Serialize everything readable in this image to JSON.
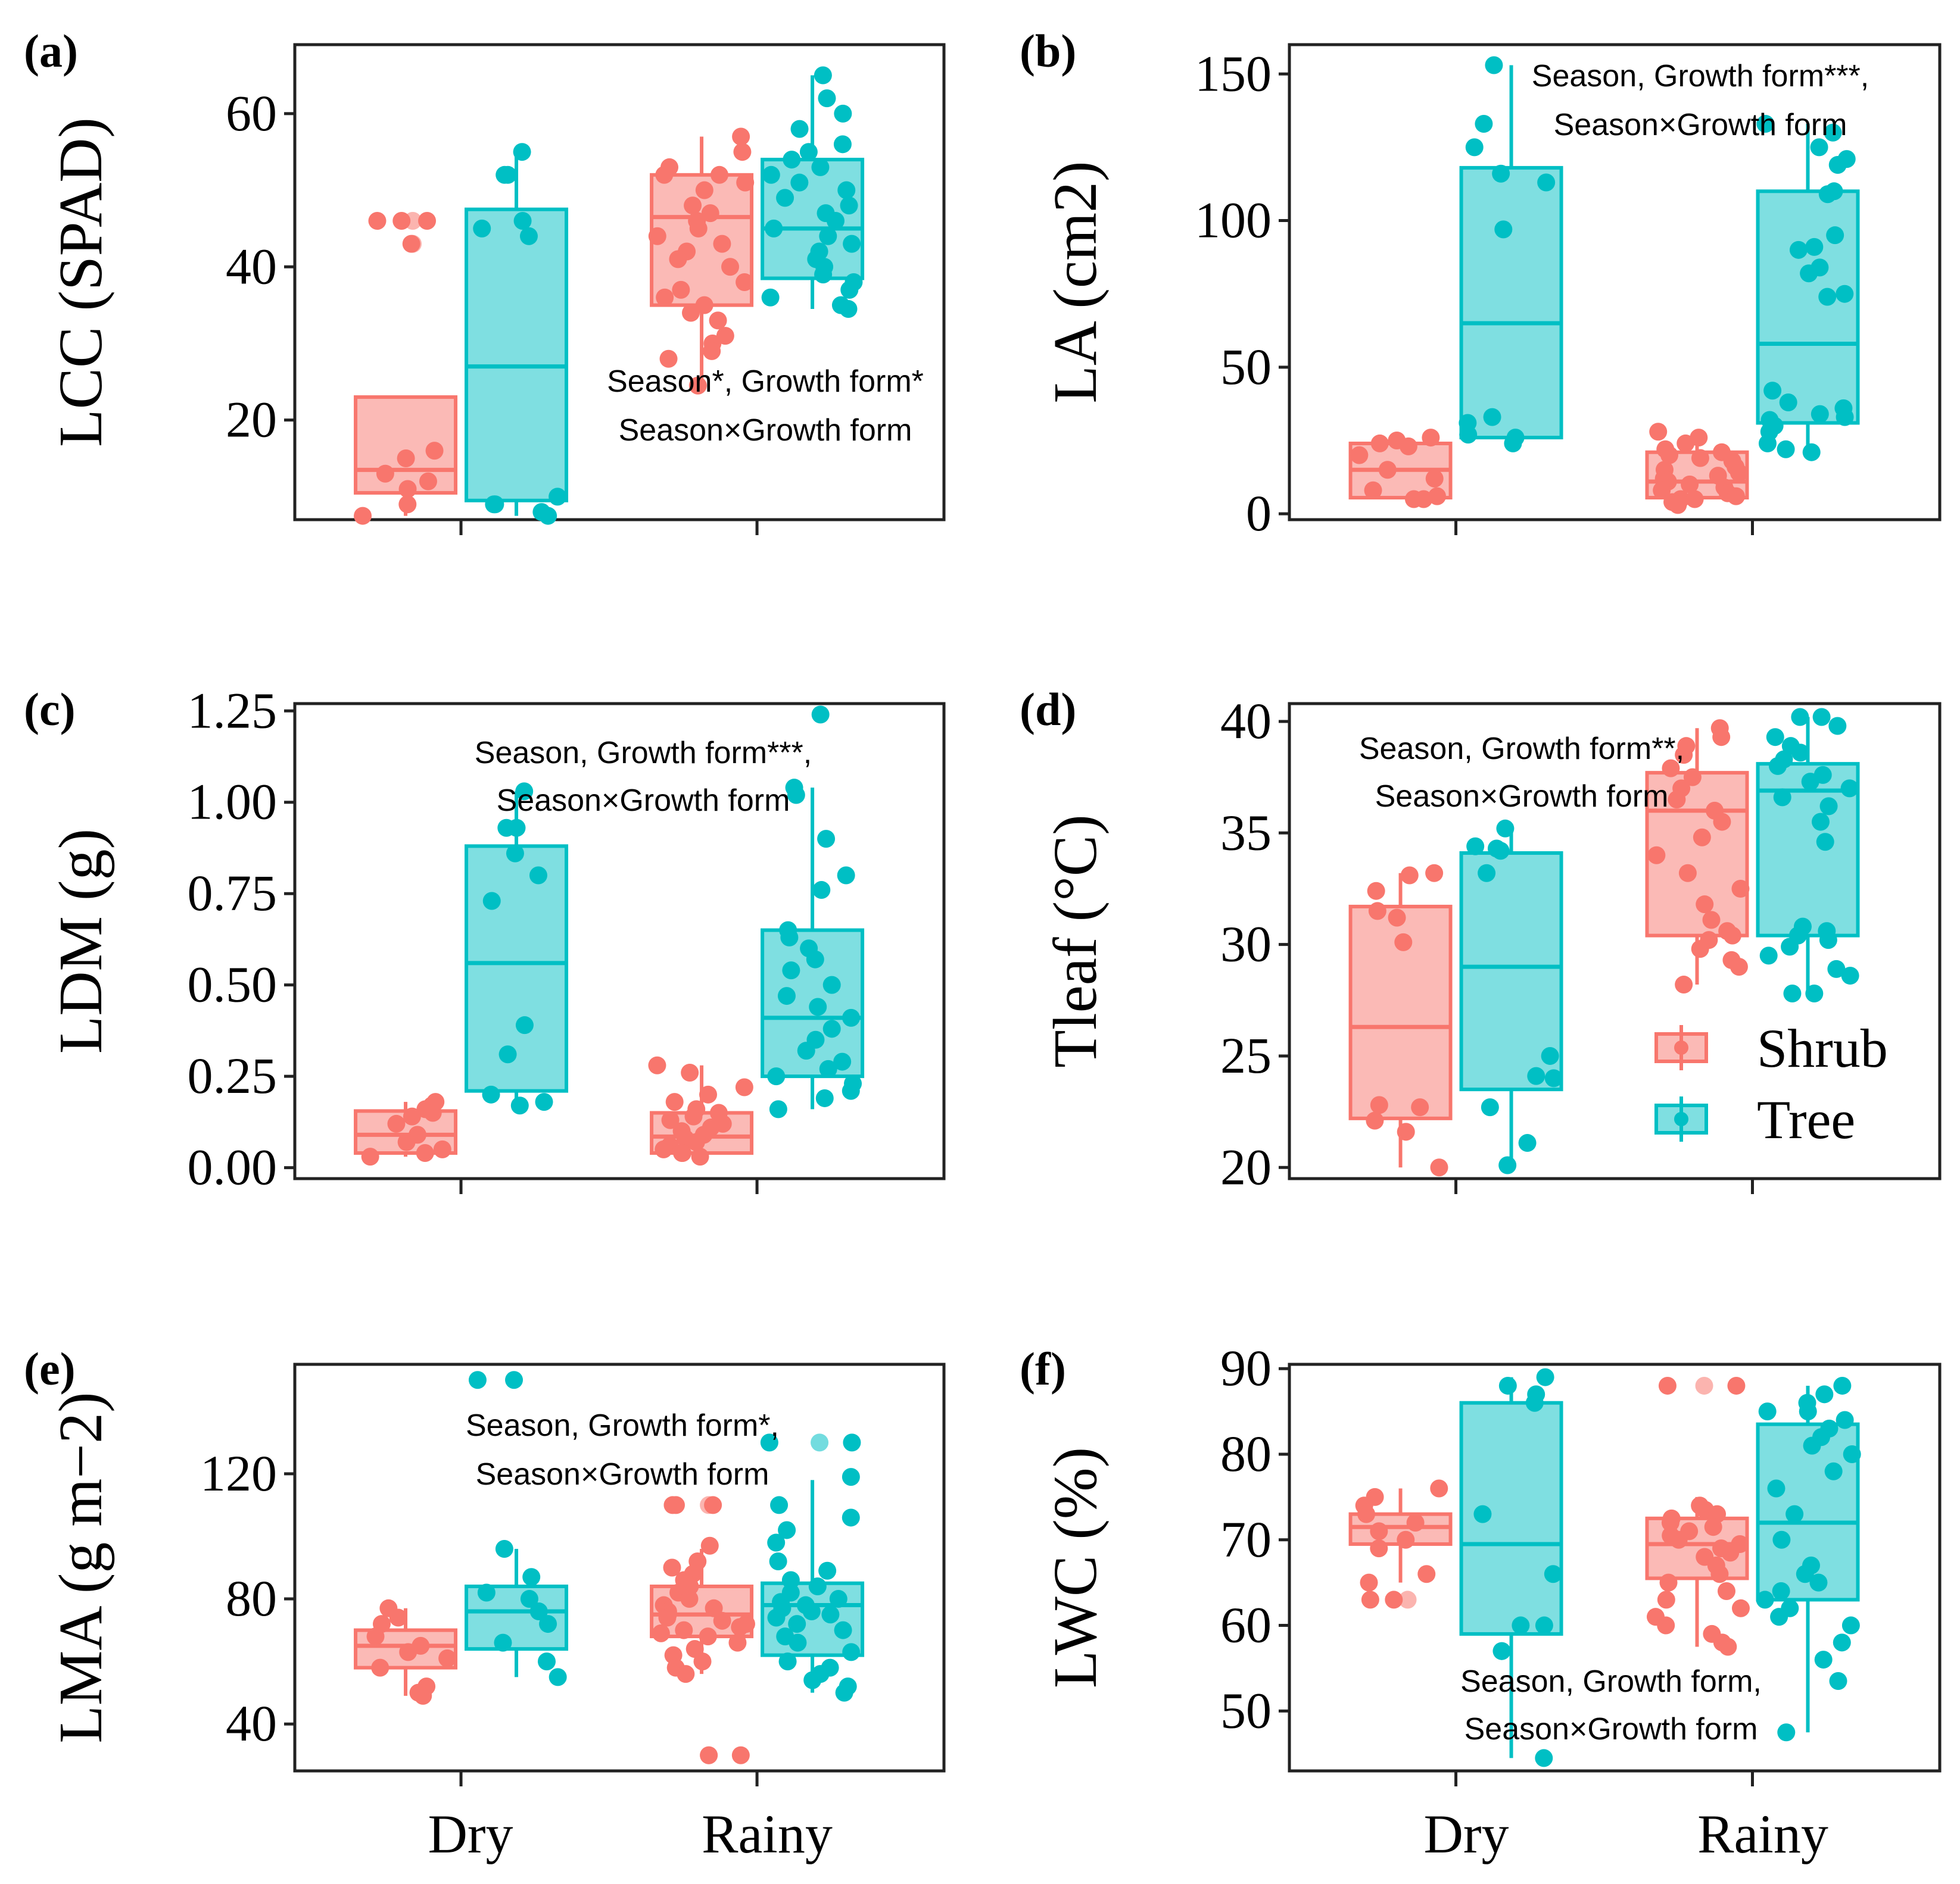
{
  "colors": {
    "shrub": "#F8766D",
    "tree": "#00BFC4"
  },
  "legend": {
    "title": "",
    "items": [
      {
        "name": "Shrub",
        "color": "#F8766D"
      },
      {
        "name": "Tree",
        "color": "#00BFC4"
      }
    ],
    "placement": "bottom-right of panel (d)"
  },
  "chart_data": [
    {
      "panel": "(a)",
      "type": "box",
      "ylabel": "LCC (SPAD)",
      "ylim": [
        7,
        69
      ],
      "yticks": [
        20,
        40,
        60
      ],
      "categories": [
        "Dry",
        "Rainy"
      ],
      "annotation": [
        "Season*, Growth form*",
        "Season×Growth form"
      ],
      "boxes": [
        {
          "group": "Shrub",
          "x": "Dry",
          "lower": 7.5,
          "q1": 10.5,
          "median": 13.5,
          "q3": 23,
          "upper": 23,
          "outliers": [
            43,
            46
          ]
        },
        {
          "group": "Tree",
          "x": "Dry",
          "lower": 7.5,
          "q1": 9.5,
          "median": 27,
          "q3": 47.5,
          "upper": 55
        },
        {
          "group": "Shrub",
          "x": "Rainy",
          "lower": 24.5,
          "q1": 35,
          "median": 46.5,
          "q3": 52,
          "upper": 57
        },
        {
          "group": "Tree",
          "x": "Rainy",
          "lower": 34.5,
          "q1": 38.5,
          "median": 45,
          "q3": 54,
          "upper": 65
        }
      ],
      "points": {
        "Shrub-Dry": [
          46,
          46,
          43,
          46,
          13,
          16,
          12,
          15,
          11,
          9,
          7.5
        ],
        "Tree-Dry": [
          55,
          52,
          52,
          46,
          45,
          44,
          10,
          9,
          9,
          8,
          7.5
        ],
        "Shrub-Rainy": [
          57,
          55,
          53,
          52,
          52,
          51,
          50,
          48,
          47,
          46,
          45,
          44,
          43,
          42,
          41,
          40,
          38,
          37,
          36,
          35,
          34,
          33,
          31,
          30,
          29,
          28,
          24.5
        ],
        "Tree-Rainy": [
          65,
          62,
          60,
          58,
          56,
          55,
          54,
          53,
          52,
          51,
          50,
          49,
          48,
          47,
          46,
          45,
          44,
          43,
          42,
          41,
          40,
          39,
          38,
          37,
          36,
          35,
          34.5
        ]
      }
    },
    {
      "panel": "(b)",
      "type": "box",
      "ylabel": "LA (cm2)",
      "ylim": [
        -2,
        160
      ],
      "yticks": [
        0,
        50,
        100,
        150
      ],
      "categories": [
        "Dry",
        "Rainy"
      ],
      "annotation": [
        "Season, Growth form***,",
        "Season×Growth form"
      ],
      "boxes": [
        {
          "group": "Shrub",
          "x": "Dry",
          "lower": 5,
          "q1": 5.5,
          "median": 15,
          "q3": 24,
          "upper": 26
        },
        {
          "group": "Tree",
          "x": "Dry",
          "lower": 24,
          "q1": 26,
          "median": 65,
          "q3": 118,
          "upper": 153
        },
        {
          "group": "Shrub",
          "x": "Rainy",
          "lower": 3,
          "q1": 5.5,
          "median": 11,
          "q3": 21,
          "upper": 28
        },
        {
          "group": "Tree",
          "x": "Rainy",
          "lower": 20,
          "q1": 31,
          "median": 58,
          "q3": 110,
          "upper": 133
        }
      ],
      "points": {
        "Shrub-Dry": [
          26,
          25,
          24,
          23,
          20,
          15,
          12,
          8,
          6,
          5,
          5
        ],
        "Tree-Dry": [
          153,
          133,
          125,
          116,
          113,
          97,
          33,
          31,
          27,
          26,
          24
        ],
        "Shrub-Rainy": [
          28,
          26,
          24,
          22,
          21,
          20,
          19,
          18,
          16,
          15,
          14,
          13,
          12,
          11,
          10,
          9,
          8,
          7,
          6,
          5,
          5,
          4,
          3
        ],
        "Tree-Rainy": [
          133,
          130,
          125,
          121,
          119,
          110,
          109,
          95,
          91,
          90,
          84,
          82,
          75,
          74,
          42,
          38,
          36,
          34,
          33,
          32,
          30,
          28,
          24,
          22,
          21
        ]
      }
    },
    {
      "panel": "(c)",
      "type": "box",
      "ylabel": "LDM (g)",
      "ylim": [
        -0.03,
        1.27
      ],
      "yticks": [
        0.0,
        0.25,
        0.5,
        0.75,
        1.0,
        1.25
      ],
      "ytick_labels": [
        "0.00",
        "0.25",
        "0.50",
        "0.75",
        "1.00",
        "1.25"
      ],
      "categories": [
        "Dry",
        "Rainy"
      ],
      "annotation": [
        "Season, Growth form***,",
        "Season×Growth form"
      ],
      "boxes": [
        {
          "group": "Shrub",
          "x": "Dry",
          "lower": 0.03,
          "q1": 0.04,
          "median": 0.09,
          "q3": 0.155,
          "upper": 0.18
        },
        {
          "group": "Tree",
          "x": "Dry",
          "lower": 0.17,
          "q1": 0.21,
          "median": 0.56,
          "q3": 0.88,
          "upper": 1.03
        },
        {
          "group": "Shrub",
          "x": "Rainy",
          "lower": 0.03,
          "q1": 0.04,
          "median": 0.085,
          "q3": 0.15,
          "upper": 0.28
        },
        {
          "group": "Tree",
          "x": "Rainy",
          "lower": 0.16,
          "q1": 0.25,
          "median": 0.41,
          "q3": 0.65,
          "upper": 1.04
        }
      ],
      "points": {
        "Shrub-Dry": [
          0.18,
          0.17,
          0.16,
          0.15,
          0.14,
          0.12,
          0.09,
          0.07,
          0.05,
          0.04,
          0.03
        ],
        "Tree-Dry": [
          1.03,
          0.93,
          0.93,
          0.86,
          0.8,
          0.73,
          0.39,
          0.31,
          0.2,
          0.18,
          0.17
        ],
        "Shrub-Rainy": [
          0.28,
          0.26,
          0.22,
          0.2,
          0.18,
          0.16,
          0.15,
          0.14,
          0.13,
          0.12,
          0.11,
          0.1,
          0.09,
          0.08,
          0.07,
          0.06,
          0.05,
          0.04,
          0.04,
          0.03
        ],
        "Tree-Rainy": [
          1.24,
          1.04,
          1.02,
          0.9,
          0.8,
          0.76,
          0.65,
          0.63,
          0.6,
          0.57,
          0.54,
          0.5,
          0.47,
          0.44,
          0.41,
          0.38,
          0.35,
          0.32,
          0.29,
          0.27,
          0.25,
          0.23,
          0.21,
          0.19,
          0.16
        ]
      }
    },
    {
      "panel": "(d)",
      "type": "box",
      "ylabel": "Tleaf (°C)",
      "ylim": [
        19.5,
        40.8
      ],
      "yticks": [
        20,
        25,
        30,
        35,
        40
      ],
      "categories": [
        "Dry",
        "Rainy"
      ],
      "annotation": [
        "Season, Growth form**,",
        "Season×Growth form"
      ],
      "boxes": [
        {
          "group": "Shrub",
          "x": "Dry",
          "lower": 20,
          "q1": 22.2,
          "median": 26.3,
          "q3": 31.7,
          "upper": 33.2
        },
        {
          "group": "Tree",
          "x": "Dry",
          "lower": 20.1,
          "q1": 23.5,
          "median": 29,
          "q3": 34.1,
          "upper": 35.2
        },
        {
          "group": "Shrub",
          "x": "Rainy",
          "lower": 28.2,
          "q1": 30.4,
          "median": 36,
          "q3": 37.7,
          "upper": 39.7
        },
        {
          "group": "Tree",
          "x": "Rainy",
          "lower": 27.8,
          "q1": 30.4,
          "median": 36.9,
          "q3": 38.1,
          "upper": 40.2
        }
      ],
      "points": {
        "Shrub-Dry": [
          33.2,
          33.1,
          32.4,
          31.5,
          31.2,
          30.1,
          22.8,
          22.7,
          22.1,
          21.6,
          20
        ],
        "Tree-Dry": [
          35.2,
          34.4,
          34.3,
          34.2,
          33.2,
          25,
          24.1,
          24,
          22.7,
          21.1,
          20.1
        ],
        "Shrub-Rainy": [
          39.7,
          39.3,
          38.9,
          38.5,
          37.9,
          37.5,
          37.0,
          36.5,
          36.0,
          35.5,
          34.8,
          34.0,
          33.2,
          32.5,
          31.8,
          31.1,
          30.6,
          30.4,
          30.2,
          29.8,
          29.3,
          29.0,
          28.2
        ],
        "Tree-Rainy": [
          40.2,
          40.2,
          39.8,
          39.3,
          38.9,
          38.6,
          38.3,
          38.0,
          37.6,
          37.3,
          37.0,
          36.6,
          36.2,
          35.5,
          34.6,
          30.8,
          30.6,
          30.4,
          30.2,
          29.9,
          29.5,
          28.9,
          28.6,
          27.8,
          27.8
        ]
      }
    },
    {
      "panel": "(e)",
      "type": "box",
      "ylabel": "LMA (g m−2)",
      "ylim": [
        25,
        155
      ],
      "yticks": [
        40,
        80,
        120
      ],
      "categories": [
        "Dry",
        "Rainy"
      ],
      "annotation": [
        "Season, Growth form*,",
        "Season×Growth form"
      ],
      "boxes": [
        {
          "group": "Shrub",
          "x": "Dry",
          "lower": 49,
          "q1": 58,
          "median": 65,
          "q3": 70,
          "upper": 77
        },
        {
          "group": "Tree",
          "x": "Dry",
          "lower": 55,
          "q1": 64,
          "median": 76,
          "q3": 84,
          "upper": 96
        },
        {
          "group": "Shrub",
          "x": "Rainy",
          "lower": 56,
          "q1": 68,
          "median": 75,
          "q3": 84,
          "upper": 96,
          "outliers": [
            110,
            30
          ]
        },
        {
          "group": "Tree",
          "x": "Rainy",
          "lower": 50,
          "q1": 62,
          "median": 78,
          "q3": 85,
          "upper": 118,
          "outliers": [
            130
          ]
        }
      ],
      "points": {
        "Shrub-Dry": [
          77,
          74,
          72,
          68,
          65,
          63,
          61,
          58,
          52,
          50,
          49
        ],
        "Tree-Dry": [
          150,
          150,
          96,
          87,
          82,
          80,
          76,
          72,
          66,
          60,
          55
        ],
        "Shrub-Rainy": [
          110,
          110,
          110,
          97,
          92,
          90,
          88,
          86,
          84,
          82,
          80,
          78,
          77,
          76,
          75,
          74,
          73,
          72,
          71,
          70,
          69,
          68,
          66,
          64,
          62,
          60,
          58,
          56,
          30,
          30
        ],
        "Tree-Rainy": [
          130,
          130,
          119,
          110,
          106,
          102,
          98,
          92,
          89,
          86,
          84,
          82,
          80,
          79,
          78,
          77,
          76,
          75,
          74,
          72,
          70,
          68,
          66,
          63,
          60,
          58,
          56,
          54,
          52,
          50
        ]
      }
    },
    {
      "panel": "(f)",
      "type": "box",
      "ylabel": "LWC (%)",
      "ylim": [
        43,
        90.5
      ],
      "yticks": [
        50,
        60,
        70,
        80,
        90
      ],
      "categories": [
        "Dry",
        "Rainy"
      ],
      "annotation": [
        "Season, Growth form,",
        "Season×Growth form"
      ],
      "boxes": [
        {
          "group": "Shrub",
          "x": "Dry",
          "lower": 65,
          "q1": 69.5,
          "median": 71.5,
          "q3": 73,
          "upper": 76,
          "outliers": [
            63
          ]
        },
        {
          "group": "Tree",
          "x": "Dry",
          "lower": 44.5,
          "q1": 59,
          "median": 69.5,
          "q3": 86,
          "upper": 89
        },
        {
          "group": "Shrub",
          "x": "Rainy",
          "lower": 57.5,
          "q1": 65.5,
          "median": 69.5,
          "q3": 72.5,
          "upper": 75,
          "outliers": [
            88
          ]
        },
        {
          "group": "Tree",
          "x": "Rainy",
          "lower": 47.5,
          "q1": 63,
          "median": 72,
          "q3": 83.5,
          "upper": 88
        }
      ],
      "points": {
        "Shrub-Dry": [
          76,
          75,
          74,
          73,
          72,
          71,
          70,
          69,
          66,
          65,
          63,
          63
        ],
        "Tree-Dry": [
          89,
          88,
          87,
          86,
          73,
          66,
          60,
          60,
          57,
          57,
          44.5
        ],
        "Shrub-Rainy": [
          88,
          88,
          74,
          73.5,
          73,
          72.5,
          72,
          71.5,
          71,
          70.5,
          70,
          69.5,
          69,
          68.5,
          68,
          67,
          66,
          65,
          64,
          63,
          62,
          61,
          60,
          59,
          58,
          57.5
        ],
        "Tree-Rainy": [
          88,
          87,
          86,
          85,
          85,
          84,
          83,
          82,
          81,
          80,
          78,
          76,
          73,
          70,
          67,
          66,
          65,
          64,
          63,
          62,
          61,
          60,
          58,
          56,
          53.5,
          47.5
        ]
      }
    }
  ]
}
